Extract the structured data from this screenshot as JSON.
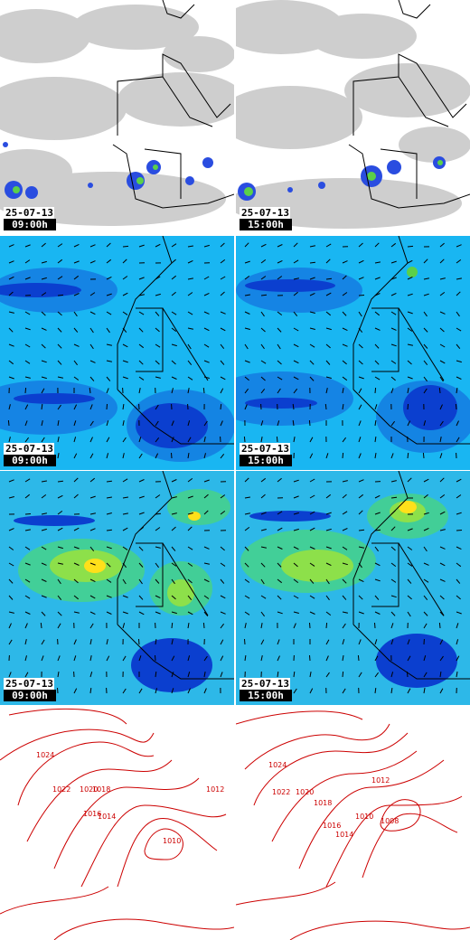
{
  "layout": "4 rows x 2 columns forecast map panels",
  "colors": {
    "cloud_gray": "#c9c9c9",
    "satellite_bg": "#ffffff",
    "rain_blue": "#2a4de0",
    "rain_green": "#5bd04a",
    "wind_low": "#0b3fcf",
    "wind_mid": "#19b6f2",
    "wind_high": "#ffe01a",
    "isobar_red": "#cc0000",
    "border_black": "#000000"
  },
  "rows": [
    {
      "id": "precipitation",
      "panels": [
        {
          "date": "25-07-13",
          "hour": "09:00h"
        },
        {
          "date": "25-07-13",
          "hour": "15:00h"
        }
      ]
    },
    {
      "id": "wind-low",
      "panels": [
        {
          "date": "25-07-13",
          "hour": "09:00h"
        },
        {
          "date": "25-07-13",
          "hour": "15:00h"
        }
      ]
    },
    {
      "id": "wind-high",
      "panels": [
        {
          "date": "25-07-13",
          "hour": "09:00h"
        },
        {
          "date": "25-07-13",
          "hour": "15:00h"
        }
      ]
    },
    {
      "id": "pressure",
      "panels": [
        {
          "isobar_labels": [
            "1024",
            "1022",
            "1020",
            "1018",
            "1016",
            "1014",
            "1012",
            "1010"
          ]
        },
        {
          "isobar_labels": [
            "1024",
            "1022",
            "1020",
            "1018",
            "1016",
            "1014",
            "1012",
            "1010",
            "1008"
          ]
        }
      ]
    }
  ]
}
